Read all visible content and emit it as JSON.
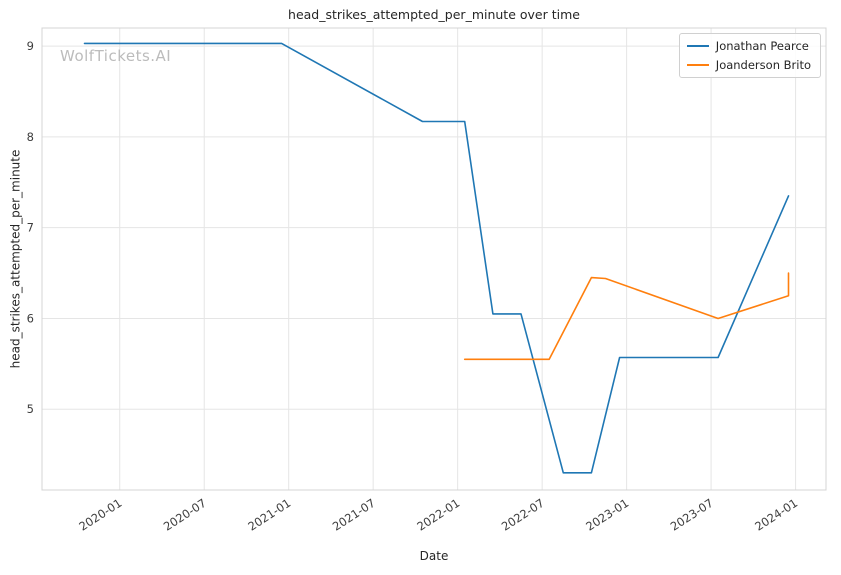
{
  "watermark": "WolfTickets.AI",
  "chart_data": {
    "type": "line",
    "title": "head_strikes_attempted_per_minute over time",
    "xlabel": "Date",
    "ylabel": "head_strikes_attempted_per_minute",
    "grid": true,
    "legend_position": "upper right",
    "xlim": [
      2019.54,
      2024.18
    ],
    "ylim": [
      4.11,
      9.2
    ],
    "x_ticks": [
      {
        "label": "2020-01",
        "x": 2020.0
      },
      {
        "label": "2020-07",
        "x": 2020.5
      },
      {
        "label": "2021-01",
        "x": 2021.0
      },
      {
        "label": "2021-07",
        "x": 2021.5
      },
      {
        "label": "2022-01",
        "x": 2022.0
      },
      {
        "label": "2022-07",
        "x": 2022.5
      },
      {
        "label": "2023-01",
        "x": 2023.0
      },
      {
        "label": "2023-07",
        "x": 2023.5
      },
      {
        "label": "2024-01",
        "x": 2024.0
      }
    ],
    "y_ticks": [
      5,
      6,
      7,
      8,
      9
    ],
    "series": [
      {
        "name": "Jonathan Pearce",
        "color": "#1f77b4",
        "points": [
          {
            "date": "2019-10",
            "y": 9.03
          },
          {
            "date": "2020-12",
            "y": 9.03
          },
          {
            "date": "2021-10",
            "y": 8.17
          },
          {
            "date": "2022-01",
            "y": 8.17
          },
          {
            "date": "2022-03",
            "y": 6.05
          },
          {
            "date": "2022-05",
            "y": 6.05
          },
          {
            "date": "2022-08",
            "y": 4.3
          },
          {
            "date": "2022-10",
            "y": 4.3
          },
          {
            "date": "2022-12",
            "y": 5.57
          },
          {
            "date": "2023-07",
            "y": 5.57
          },
          {
            "date": "2023-12",
            "y": 7.35
          }
        ]
      },
      {
        "name": "Joanderson Brito",
        "color": "#ff7f0e",
        "points": [
          {
            "date": "2022-01",
            "y": 5.55
          },
          {
            "date": "2022-07",
            "y": 5.55
          },
          {
            "date": "2022-10",
            "y": 6.45
          },
          {
            "date": "2022-11",
            "y": 6.44
          },
          {
            "date": "2023-07",
            "y": 6.0
          },
          {
            "date": "2023-12",
            "y": 6.25
          },
          {
            "date": "2023-12",
            "y": 6.5
          }
        ]
      }
    ]
  }
}
